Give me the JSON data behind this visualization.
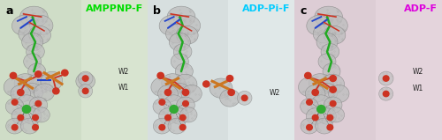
{
  "panels": [
    {
      "label": "a",
      "title": "AMPPNP-F",
      "title_color": "#00dd00",
      "bg_left": "#c8d8c0",
      "bg_right": "#d8e4d0",
      "has_w1": true,
      "w2_label": "W2",
      "w1_label": "W1"
    },
    {
      "label": "b",
      "title": "ADP-Pi-F",
      "title_color": "#00ccff",
      "bg_left": "#d0d8d8",
      "bg_right": "#e0e8e8",
      "has_w1": false,
      "w2_label": "W2",
      "w1_label": ""
    },
    {
      "label": "c",
      "title": "ADP-F",
      "title_color": "#dd00dd",
      "bg_left": "#d8c8d0",
      "bg_right": "#e4d4dc",
      "has_w1": true,
      "w2_label": "W2",
      "w1_label": "W1"
    }
  ],
  "fig_width": 5.0,
  "fig_height": 1.59,
  "dpi": 100,
  "label_fontsize": 9,
  "title_fontsize": 8,
  "annot_fontsize": 5.5,
  "blob_gray": "#b8b8b8",
  "blob_edge": "#909090",
  "blob_stipple": "#d8d8d8",
  "green_stick": "#22aa22",
  "blue_stick": "#2244cc",
  "red_stick": "#cc3322",
  "orange_p": "#cc7722",
  "water_red": "#cc3322",
  "mg_green": "#33aa33",
  "bg_white": "#ffffff"
}
